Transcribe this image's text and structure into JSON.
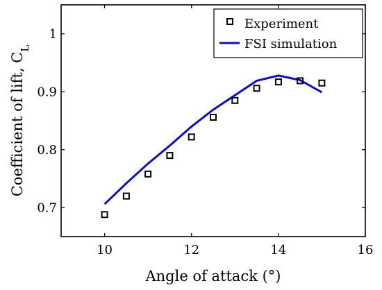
{
  "chart_data": {
    "type": "line",
    "xlabel": "Angle of attack (°)",
    "ylabel": "Coefficient of lift, C",
    "ylabel_subscript": "L",
    "xlim": [
      9,
      16
    ],
    "ylim": [
      0.65,
      1.05
    ],
    "xticks": [
      10,
      12,
      14,
      16
    ],
    "yticks": [
      0.7,
      0.8,
      0.9,
      1
    ],
    "xtick_labels": [
      "10",
      "12",
      "14",
      "16"
    ],
    "ytick_labels": [
      "0.7",
      "0.8",
      "0.9",
      "1"
    ],
    "legend_position": "top-right",
    "grid": false,
    "series": [
      {
        "name": "Experiment",
        "kind": "scatter",
        "marker": "square",
        "color": "#000000",
        "x": [
          10,
          10.5,
          11,
          11.5,
          12,
          12.5,
          13,
          13.5,
          14,
          14.5,
          15
        ],
        "y": [
          0.688,
          0.72,
          0.758,
          0.79,
          0.822,
          0.856,
          0.885,
          0.906,
          0.917,
          0.919,
          0.915
        ]
      },
      {
        "name": "FSI simulation",
        "kind": "line",
        "color": "#0a0adc",
        "x": [
          10,
          10.5,
          11,
          11.5,
          12,
          12.5,
          13,
          13.5,
          14,
          14.5,
          15
        ],
        "y": [
          0.706,
          0.742,
          0.776,
          0.807,
          0.84,
          0.869,
          0.894,
          0.919,
          0.928,
          0.92,
          0.899
        ]
      }
    ]
  }
}
